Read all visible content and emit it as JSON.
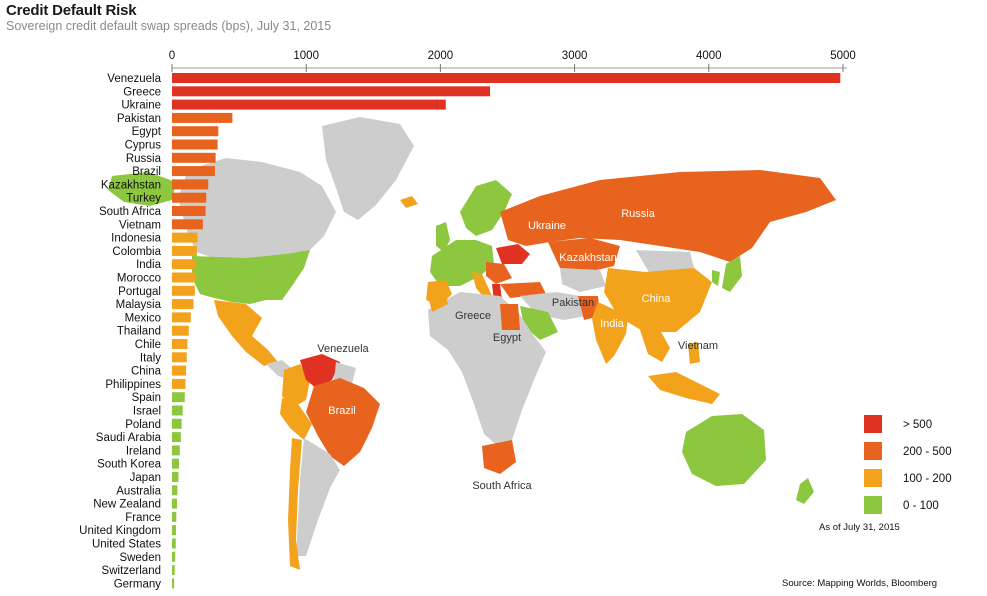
{
  "header": {
    "title": "Credit Default Risk",
    "subtitle": "Sovereign credit default swap spreads (bps), July 31, 2015"
  },
  "chart_data": {
    "type": "bar",
    "orientation": "horizontal",
    "title": "Credit Default Risk",
    "subtitle": "Sovereign credit default swap spreads (bps), July 31, 2015",
    "xlim": [
      0,
      5000
    ],
    "xticks": [
      0,
      1000,
      2000,
      3000,
      4000,
      5000
    ],
    "xaxis_position": "top",
    "grid": false,
    "categories": [
      "Venezuela",
      "Greece",
      "Ukraine",
      "Pakistan",
      "Egypt",
      "Cyprus",
      "Russia",
      "Brazil",
      "Kazakhstan",
      "Turkey",
      "South Africa",
      "Vietnam",
      "Indonesia",
      "Colombia",
      "India",
      "Morocco",
      "Portugal",
      "Malaysia",
      "Mexico",
      "Thailand",
      "Chile",
      "Italy",
      "China",
      "Philippines",
      "Spain",
      "Israel",
      "Poland",
      "Saudi Arabia",
      "Ireland",
      "South Korea",
      "Japan",
      "Australia",
      "New Zealand",
      "France",
      "United Kingdom",
      "United States",
      "Sweden",
      "Switzerland",
      "Germany"
    ],
    "values": [
      4980,
      2370,
      2040,
      450,
      345,
      340,
      325,
      320,
      270,
      255,
      250,
      230,
      190,
      185,
      180,
      175,
      170,
      160,
      140,
      125,
      115,
      110,
      105,
      100,
      95,
      80,
      72,
      66,
      58,
      52,
      48,
      40,
      37,
      32,
      30,
      28,
      24,
      20,
      16
    ],
    "legend": {
      "placement": "bottom-right",
      "entries": [
        {
          "label": "> 500",
          "color": "#e03222"
        },
        {
          "label": "200 - 500",
          "color": "#e8641e"
        },
        {
          "label": "100 - 200",
          "color": "#f2a31b"
        },
        {
          "label": "0 - 100",
          "color": "#8dc63f"
        }
      ]
    },
    "bands": [
      {
        "min": 500,
        "color": "#e03222"
      },
      {
        "min": 200,
        "color": "#e8641e"
      },
      {
        "min": 100,
        "color": "#f2a31b"
      },
      {
        "min": 0,
        "color": "#8dc63f"
      }
    ],
    "map_labels": [
      "Venezuela",
      "Greece",
      "Ukraine",
      "Russia",
      "Kazakhstan",
      "Pakistan",
      "China",
      "India",
      "Egypt",
      "Vietnam",
      "Brazil",
      "South Africa"
    ]
  },
  "footer": {
    "as_of": "As of July 31, 2015",
    "source": "Source: Mapping Worlds, Bloomberg"
  },
  "colors": {
    "land_default": "#cdcdcd",
    "high": "#e03222",
    "medium_high": "#e8641e",
    "medium": "#f2a31b",
    "low": "#8dc63f"
  }
}
